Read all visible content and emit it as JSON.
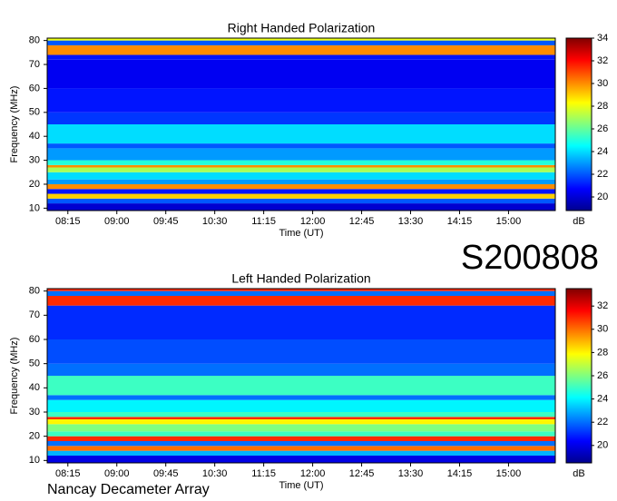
{
  "header": {
    "id": "S200808"
  },
  "footer": "Nancay Decameter Array",
  "chart_data": [
    {
      "type": "heatmap",
      "title": "Right Handed Polarization",
      "xlabel": "Time (UT)",
      "ylabel": "Frequency (MHz)",
      "colorbar_label": "dB",
      "y_bins": [
        9,
        12,
        14,
        16,
        18,
        20,
        22,
        25,
        27,
        28,
        30,
        35,
        37,
        45,
        50,
        60,
        72,
        74,
        78,
        80,
        81
      ],
      "values": [
        20,
        22,
        29,
        21,
        30,
        23,
        24,
        27,
        30,
        25,
        23,
        22,
        24,
        21.5,
        21,
        20.5,
        21,
        30,
        22,
        28
      ],
      "xlim": [
        476,
        943
      ],
      "xticks": [
        {
          "value": 495,
          "label": "08:15"
        },
        {
          "value": 540,
          "label": "09:00"
        },
        {
          "value": 585,
          "label": "09:45"
        },
        {
          "value": 630,
          "label": "10:30"
        },
        {
          "value": 675,
          "label": "11:15"
        },
        {
          "value": 720,
          "label": "12:00"
        },
        {
          "value": 765,
          "label": "12:45"
        },
        {
          "value": 810,
          "label": "13:30"
        },
        {
          "value": 855,
          "label": "14:15"
        },
        {
          "value": 900,
          "label": "15:00"
        }
      ],
      "ylim": [
        9,
        81
      ],
      "yticks": [
        10,
        20,
        30,
        40,
        50,
        60,
        70,
        80
      ],
      "clim": [
        18.8,
        34
      ],
      "cticks": [
        20,
        22,
        24,
        26,
        28,
        30,
        32,
        34
      ]
    },
    {
      "type": "heatmap",
      "title": "Left Handed Polarization",
      "xlabel": "Time (UT)",
      "ylabel": "Frequency (MHz)",
      "colorbar_label": "dB",
      "y_bins": [
        9,
        12,
        14,
        16,
        18,
        20,
        22,
        25,
        27,
        28,
        30,
        35,
        37,
        45,
        50,
        60,
        72,
        74,
        78,
        80,
        81
      ],
      "values": [
        20,
        23,
        30,
        22,
        31,
        25,
        26,
        28,
        31,
        25,
        24,
        22,
        25,
        22,
        21.5,
        21,
        21,
        31,
        22,
        31
      ],
      "xlim": [
        476,
        943
      ],
      "xticks": [
        {
          "value": 495,
          "label": "08:15"
        },
        {
          "value": 540,
          "label": "09:00"
        },
        {
          "value": 585,
          "label": "09:45"
        },
        {
          "value": 630,
          "label": "10:30"
        },
        {
          "value": 675,
          "label": "11:15"
        },
        {
          "value": 720,
          "label": "12:00"
        },
        {
          "value": 765,
          "label": "12:45"
        },
        {
          "value": 810,
          "label": "13:30"
        },
        {
          "value": 855,
          "label": "14:15"
        },
        {
          "value": 900,
          "label": "15:00"
        }
      ],
      "ylim": [
        9,
        81
      ],
      "yticks": [
        10,
        20,
        30,
        40,
        50,
        60,
        70,
        80
      ],
      "clim": [
        18.5,
        33.5
      ],
      "cticks": [
        20,
        22,
        24,
        26,
        28,
        30,
        32
      ]
    }
  ]
}
